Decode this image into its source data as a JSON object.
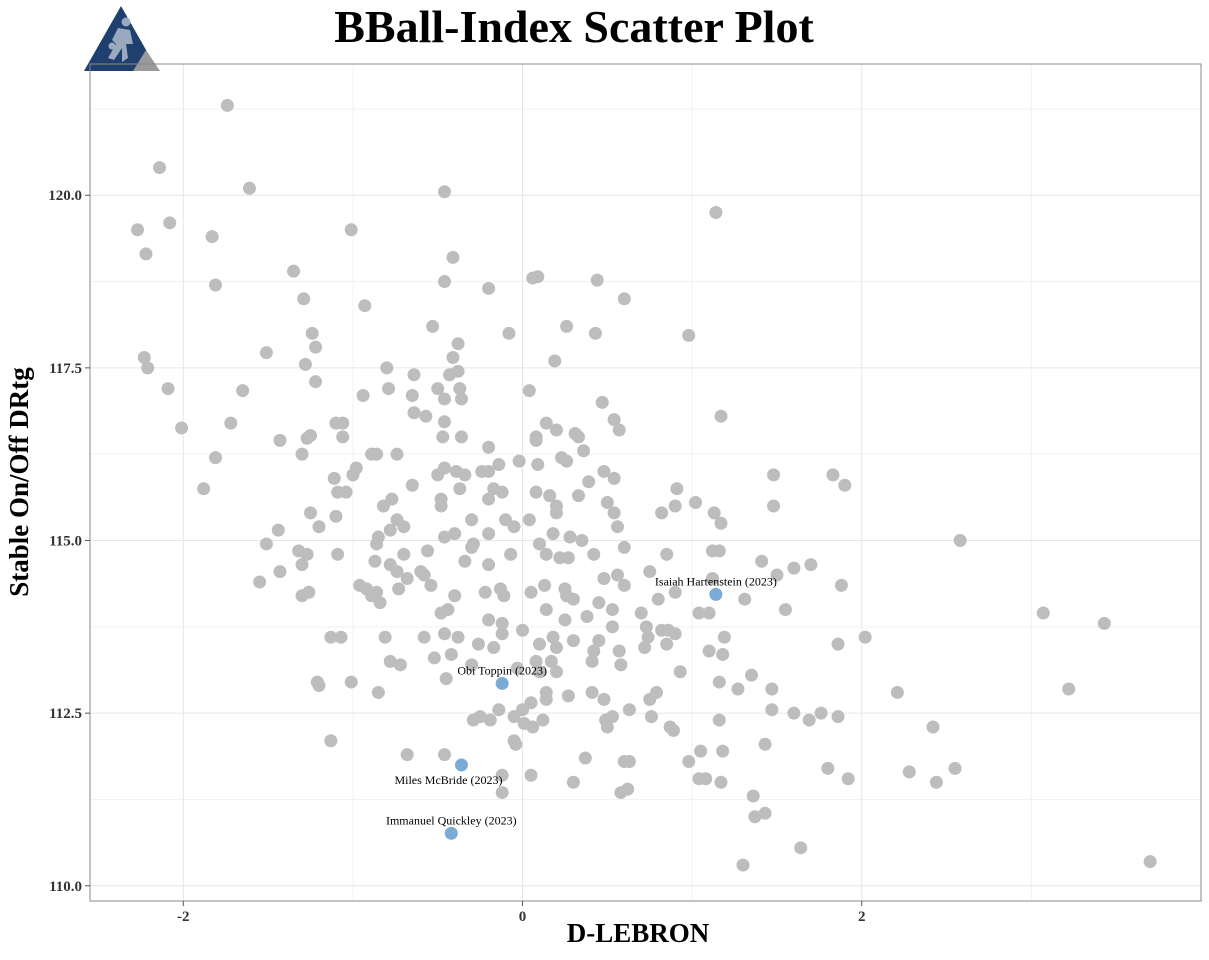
{
  "chart_data": {
    "type": "scatter",
    "title": "BBall-Index Scatter Plot",
    "xlabel": "D-LEBRON",
    "ylabel": "Stable On/Off DRtg",
    "xlim": [
      -2.55,
      4.0
    ],
    "ylim": [
      109.78,
      121.9
    ],
    "x_ticks": [
      -2,
      0,
      2
    ],
    "x_tick_labels": [
      "-2",
      "0",
      "2"
    ],
    "y_ticks": [
      110.0,
      112.5,
      115.0,
      117.5,
      120.0
    ],
    "y_tick_labels": [
      "110.0",
      "112.5",
      "115.0",
      "117.5",
      "120.0"
    ],
    "grid": true,
    "legend": "none",
    "colors": {
      "points": "#bdbdbd",
      "highlight": "#7aaad6",
      "panel_border": "#888888",
      "logo_primary": "#1f3f6e",
      "logo_secondary": "#9a9a9a"
    },
    "logo_icon": "basketball-player-logo",
    "highlighted": [
      {
        "label": "Isaiah Hartenstein (2023)",
        "x": 1.14,
        "y": 114.22,
        "label_pos": "above"
      },
      {
        "label": "Obi Toppin (2023)",
        "x": -0.12,
        "y": 112.93,
        "label_pos": "above"
      },
      {
        "label": "Miles McBride (2023)",
        "x": -0.36,
        "y": 111.75,
        "label_pos": "below-left"
      },
      {
        "label": "Immanuel Quickley (2023)",
        "x": -0.42,
        "y": 110.76,
        "label_pos": "above"
      }
    ],
    "points": [
      [
        -1.74,
        121.3
      ],
      [
        -2.14,
        120.4
      ],
      [
        -1.61,
        120.1
      ],
      [
        -0.46,
        120.05
      ],
      [
        1.14,
        119.75
      ],
      [
        -2.27,
        119.5
      ],
      [
        -2.08,
        119.6
      ],
      [
        -1.83,
        119.4
      ],
      [
        -2.22,
        119.15
      ],
      [
        -1.01,
        119.5
      ],
      [
        -0.41,
        119.1
      ],
      [
        -1.35,
        118.9
      ],
      [
        -1.81,
        118.7
      ],
      [
        -0.46,
        118.75
      ],
      [
        0.06,
        118.8
      ],
      [
        0.09,
        118.82
      ],
      [
        0.44,
        118.77
      ],
      [
        -0.2,
        118.65
      ],
      [
        -1.29,
        118.5
      ],
      [
        0.6,
        118.5
      ],
      [
        -0.93,
        118.4
      ],
      [
        -0.53,
        118.1
      ],
      [
        0.26,
        118.1
      ],
      [
        -1.24,
        118.0
      ],
      [
        -0.08,
        118.0
      ],
      [
        0.43,
        118.0
      ],
      [
        0.98,
        117.97
      ],
      [
        -0.38,
        117.85
      ],
      [
        -1.22,
        117.8
      ],
      [
        -2.23,
        117.65
      ],
      [
        -1.51,
        117.72
      ],
      [
        -0.41,
        117.65
      ],
      [
        0.19,
        117.6
      ],
      [
        -2.21,
        117.5
      ],
      [
        -1.28,
        117.55
      ],
      [
        -0.8,
        117.5
      ],
      [
        -0.64,
        117.4
      ],
      [
        -0.38,
        117.45
      ],
      [
        -0.43,
        117.4
      ],
      [
        -1.22,
        117.3
      ],
      [
        -2.09,
        117.2
      ],
      [
        -1.65,
        117.17
      ],
      [
        -0.79,
        117.2
      ],
      [
        -0.5,
        117.2
      ],
      [
        -0.37,
        117.2
      ],
      [
        0.04,
        117.17
      ],
      [
        -0.65,
        117.1
      ],
      [
        -0.94,
        117.1
      ],
      [
        -0.46,
        117.05
      ],
      [
        -0.36,
        117.05
      ],
      [
        0.47,
        117.0
      ],
      [
        -0.64,
        116.85
      ],
      [
        -0.57,
        116.8
      ],
      [
        1.17,
        116.8
      ],
      [
        0.54,
        116.75
      ],
      [
        -1.06,
        116.7
      ],
      [
        -1.72,
        116.7
      ],
      [
        -1.1,
        116.7
      ],
      [
        -0.46,
        116.72
      ],
      [
        0.14,
        116.7
      ],
      [
        -2.01,
        116.63
      ],
      [
        0.2,
        116.6
      ],
      [
        0.57,
        116.6
      ],
      [
        -1.25,
        116.52
      ],
      [
        -1.06,
        116.5
      ],
      [
        -1.27,
        116.48
      ],
      [
        -0.47,
        116.5
      ],
      [
        -0.36,
        116.5
      ],
      [
        0.08,
        116.5
      ],
      [
        0.31,
        116.55
      ],
      [
        0.33,
        116.5
      ],
      [
        -1.43,
        116.45
      ],
      [
        0.08,
        116.45
      ],
      [
        -0.2,
        116.35
      ],
      [
        -1.3,
        116.25
      ],
      [
        -0.89,
        116.25
      ],
      [
        -0.86,
        116.25
      ],
      [
        -0.74,
        116.25
      ],
      [
        0.36,
        116.3
      ],
      [
        0.23,
        116.2
      ],
      [
        -1.81,
        116.2
      ],
      [
        0.26,
        116.15
      ],
      [
        -0.14,
        116.1
      ],
      [
        -0.02,
        116.15
      ],
      [
        -0.98,
        116.05
      ],
      [
        -0.46,
        116.05
      ],
      [
        -0.39,
        116.0
      ],
      [
        0.09,
        116.1
      ],
      [
        -0.24,
        116.0
      ],
      [
        -0.2,
        116.0
      ],
      [
        0.48,
        116.0
      ],
      [
        -1.11,
        115.9
      ],
      [
        -1.0,
        115.95
      ],
      [
        -0.5,
        115.95
      ],
      [
        -0.34,
        115.95
      ],
      [
        0.54,
        115.9
      ],
      [
        0.39,
        115.85
      ],
      [
        1.48,
        115.95
      ],
      [
        1.83,
        115.95
      ],
      [
        1.9,
        115.8
      ],
      [
        -0.65,
        115.8
      ],
      [
        -0.37,
        115.75
      ],
      [
        -0.12,
        115.7
      ],
      [
        -0.17,
        115.75
      ],
      [
        -0.2,
        115.6
      ],
      [
        0.08,
        115.7
      ],
      [
        0.91,
        115.75
      ],
      [
        0.16,
        115.65
      ],
      [
        0.33,
        115.65
      ],
      [
        -1.04,
        115.7
      ],
      [
        -0.77,
        115.6
      ],
      [
        -0.48,
        115.6
      ],
      [
        -0.48,
        115.5
      ],
      [
        0.2,
        115.5
      ],
      [
        0.5,
        115.55
      ],
      [
        1.02,
        115.55
      ],
      [
        1.48,
        115.5
      ],
      [
        -1.88,
        115.75
      ],
      [
        -1.09,
        115.7
      ],
      [
        -0.82,
        115.5
      ],
      [
        0.9,
        115.5
      ],
      [
        1.13,
        115.4
      ],
      [
        0.82,
        115.4
      ],
      [
        0.2,
        115.4
      ],
      [
        0.54,
        115.4
      ],
      [
        -1.1,
        115.35
      ],
      [
        -1.25,
        115.4
      ],
      [
        -0.74,
        115.3
      ],
      [
        -0.3,
        115.3
      ],
      [
        -0.1,
        115.3
      ],
      [
        0.04,
        115.3
      ],
      [
        1.17,
        115.25
      ],
      [
        -1.2,
        115.2
      ],
      [
        -0.7,
        115.2
      ],
      [
        -0.05,
        115.2
      ],
      [
        0.56,
        115.2
      ],
      [
        -1.44,
        115.15
      ],
      [
        -0.78,
        115.15
      ],
      [
        -0.4,
        115.1
      ],
      [
        -0.2,
        115.1
      ],
      [
        0.18,
        115.1
      ],
      [
        -0.85,
        115.05
      ],
      [
        -0.46,
        115.05
      ],
      [
        0.28,
        115.05
      ],
      [
        0.35,
        115.0
      ],
      [
        -0.29,
        114.95
      ],
      [
        0.1,
        114.95
      ],
      [
        0.6,
        114.9
      ],
      [
        1.12,
        114.85
      ],
      [
        1.16,
        114.85
      ],
      [
        -0.86,
        114.95
      ],
      [
        -0.3,
        114.9
      ],
      [
        -0.07,
        114.8
      ],
      [
        0.14,
        114.8
      ],
      [
        0.22,
        114.75
      ],
      [
        -1.51,
        114.95
      ],
      [
        -1.27,
        114.8
      ],
      [
        -1.32,
        114.85
      ],
      [
        -1.09,
        114.8
      ],
      [
        -0.7,
        114.8
      ],
      [
        -0.56,
        114.85
      ],
      [
        0.42,
        114.8
      ],
      [
        0.85,
        114.8
      ],
      [
        1.41,
        114.7
      ],
      [
        1.6,
        114.6
      ],
      [
        1.7,
        114.65
      ],
      [
        2.58,
        115.0
      ],
      [
        -1.3,
        114.65
      ],
      [
        -0.87,
        114.7
      ],
      [
        -0.78,
        114.65
      ],
      [
        -0.6,
        114.55
      ],
      [
        -0.34,
        114.7
      ],
      [
        -0.2,
        114.65
      ],
      [
        0.27,
        114.75
      ],
      [
        -0.74,
        114.55
      ],
      [
        -0.58,
        114.5
      ],
      [
        0.48,
        114.45
      ],
      [
        0.56,
        114.5
      ],
      [
        0.75,
        114.55
      ],
      [
        1.5,
        114.5
      ],
      [
        1.12,
        114.45
      ],
      [
        -1.43,
        114.55
      ],
      [
        -1.55,
        114.4
      ],
      [
        -0.96,
        114.35
      ],
      [
        -0.68,
        114.45
      ],
      [
        -0.54,
        114.35
      ],
      [
        0.13,
        114.35
      ],
      [
        0.6,
        114.35
      ],
      [
        1.88,
        114.35
      ],
      [
        -0.92,
        114.3
      ],
      [
        -0.86,
        114.25
      ],
      [
        -0.73,
        114.3
      ],
      [
        -0.13,
        114.3
      ],
      [
        0.05,
        114.25
      ],
      [
        0.25,
        114.3
      ],
      [
        0.3,
        114.15
      ],
      [
        0.9,
        114.25
      ],
      [
        1.31,
        114.15
      ],
      [
        0.8,
        114.15
      ],
      [
        -1.26,
        114.25
      ],
      [
        -0.89,
        114.2
      ],
      [
        -0.4,
        114.2
      ],
      [
        -0.22,
        114.25
      ],
      [
        -0.11,
        114.2
      ],
      [
        0.26,
        114.2
      ],
      [
        0.45,
        114.1
      ],
      [
        -0.84,
        114.1
      ],
      [
        -1.3,
        114.2
      ],
      [
        0.53,
        114.0
      ],
      [
        -0.44,
        114.0
      ],
      [
        0.14,
        114.0
      ],
      [
        1.04,
        113.95
      ],
      [
        1.1,
        113.95
      ],
      [
        1.55,
        114.0
      ],
      [
        3.07,
        113.95
      ],
      [
        3.43,
        113.8
      ],
      [
        -0.48,
        113.95
      ],
      [
        0.7,
        113.95
      ],
      [
        -0.2,
        113.85
      ],
      [
        0.25,
        113.85
      ],
      [
        0.38,
        113.9
      ],
      [
        -0.12,
        113.8
      ],
      [
        0.53,
        113.75
      ],
      [
        0.73,
        113.75
      ],
      [
        0.82,
        113.7
      ],
      [
        0.86,
        113.7
      ],
      [
        0.9,
        113.65
      ],
      [
        1.19,
        113.6
      ],
      [
        1.86,
        113.5
      ],
      [
        2.02,
        113.6
      ],
      [
        -1.13,
        113.6
      ],
      [
        -1.07,
        113.6
      ],
      [
        -0.81,
        113.6
      ],
      [
        -0.58,
        113.6
      ],
      [
        -0.46,
        113.65
      ],
      [
        -0.38,
        113.6
      ],
      [
        -0.12,
        113.65
      ],
      [
        0.0,
        113.7
      ],
      [
        0.18,
        113.6
      ],
      [
        0.3,
        113.55
      ],
      [
        0.45,
        113.55
      ],
      [
        0.74,
        113.6
      ],
      [
        0.72,
        113.45
      ],
      [
        -0.26,
        113.5
      ],
      [
        -0.17,
        113.45
      ],
      [
        0.1,
        113.5
      ],
      [
        0.2,
        113.45
      ],
      [
        0.42,
        113.4
      ],
      [
        0.57,
        113.4
      ],
      [
        0.85,
        113.5
      ],
      [
        1.1,
        113.4
      ],
      [
        1.18,
        113.35
      ],
      [
        -0.42,
        113.35
      ],
      [
        -0.52,
        113.3
      ],
      [
        -0.78,
        113.25
      ],
      [
        -0.72,
        113.2
      ],
      [
        0.08,
        113.25
      ],
      [
        0.17,
        113.25
      ],
      [
        0.41,
        113.25
      ],
      [
        0.58,
        113.2
      ],
      [
        -0.3,
        113.2
      ],
      [
        -0.03,
        113.15
      ],
      [
        0.1,
        113.1
      ],
      [
        0.2,
        113.1
      ],
      [
        0.93,
        113.1
      ],
      [
        1.35,
        113.05
      ],
      [
        -1.01,
        112.95
      ],
      [
        -0.45,
        113.0
      ],
      [
        -1.2,
        112.9
      ],
      [
        -1.21,
        112.95
      ],
      [
        -0.85,
        112.8
      ],
      [
        0.14,
        112.8
      ],
      [
        0.14,
        112.7
      ],
      [
        0.27,
        112.75
      ],
      [
        0.41,
        112.8
      ],
      [
        0.48,
        112.7
      ],
      [
        0.79,
        112.8
      ],
      [
        1.16,
        112.95
      ],
      [
        1.27,
        112.85
      ],
      [
        1.47,
        112.85
      ],
      [
        2.21,
        112.8
      ],
      [
        3.22,
        112.85
      ],
      [
        0.75,
        112.7
      ],
      [
        0.05,
        112.65
      ],
      [
        -0.14,
        112.55
      ],
      [
        -0.25,
        112.45
      ],
      [
        -0.29,
        112.4
      ],
      [
        -0.19,
        112.4
      ],
      [
        -0.05,
        112.45
      ],
      [
        0.0,
        112.55
      ],
      [
        0.12,
        112.4
      ],
      [
        0.49,
        112.4
      ],
      [
        0.53,
        112.45
      ],
      [
        0.63,
        112.55
      ],
      [
        0.76,
        112.45
      ],
      [
        1.16,
        112.4
      ],
      [
        1.47,
        112.55
      ],
      [
        1.6,
        112.5
      ],
      [
        1.69,
        112.4
      ],
      [
        1.76,
        112.5
      ],
      [
        1.86,
        112.45
      ],
      [
        2.42,
        112.3
      ],
      [
        0.87,
        112.3
      ],
      [
        0.89,
        112.25
      ],
      [
        0.5,
        112.3
      ],
      [
        0.01,
        112.35
      ],
      [
        0.06,
        112.3
      ],
      [
        -1.13,
        112.1
      ],
      [
        -0.05,
        112.1
      ],
      [
        -0.04,
        112.05
      ],
      [
        1.43,
        112.05
      ],
      [
        1.18,
        111.95
      ],
      [
        1.05,
        111.95
      ],
      [
        0.37,
        111.85
      ],
      [
        -0.68,
        111.9
      ],
      [
        -0.46,
        111.9
      ],
      [
        0.6,
        111.8
      ],
      [
        0.63,
        111.8
      ],
      [
        0.98,
        111.8
      ],
      [
        1.8,
        111.7
      ],
      [
        2.28,
        111.65
      ],
      [
        2.55,
        111.7
      ],
      [
        -0.12,
        111.6
      ],
      [
        0.05,
        111.6
      ],
      [
        1.04,
        111.55
      ],
      [
        1.08,
        111.55
      ],
      [
        1.17,
        111.5
      ],
      [
        1.92,
        111.55
      ],
      [
        2.44,
        111.5
      ],
      [
        0.3,
        111.5
      ],
      [
        -0.12,
        111.35
      ],
      [
        0.58,
        111.35
      ],
      [
        0.62,
        111.4
      ],
      [
        1.36,
        111.3
      ],
      [
        1.43,
        111.05
      ],
      [
        1.37,
        111.0
      ],
      [
        1.64,
        110.55
      ],
      [
        1.3,
        110.3
      ],
      [
        3.7,
        110.35
      ]
    ]
  }
}
